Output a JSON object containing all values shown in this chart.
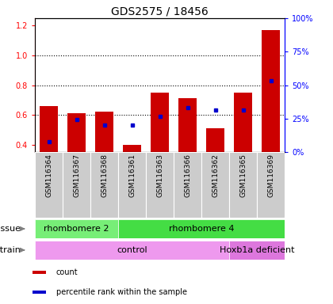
{
  "title": "GDS2575 / 18456",
  "samples": [
    "GSM116364",
    "GSM116367",
    "GSM116368",
    "GSM116361",
    "GSM116363",
    "GSM116366",
    "GSM116362",
    "GSM116365",
    "GSM116369"
  ],
  "count_values": [
    0.66,
    0.61,
    0.62,
    0.4,
    0.75,
    0.71,
    0.51,
    0.75,
    1.17
  ],
  "percentile_values": [
    0.42,
    0.57,
    0.53,
    0.53,
    0.59,
    0.65,
    0.63,
    0.63,
    0.83
  ],
  "ylim_left": [
    0.35,
    1.25
  ],
  "ylim_right": [
    0,
    100
  ],
  "yticks_left": [
    0.4,
    0.6,
    0.8,
    1.0,
    1.2
  ],
  "yticks_right": [
    0,
    25,
    50,
    75,
    100
  ],
  "ytick_labels_right": [
    "0%",
    "25%",
    "50%",
    "75%",
    "100%"
  ],
  "dotted_lines": [
    0.6,
    0.8,
    1.0
  ],
  "bar_color": "#cc0000",
  "dot_color": "#0000cc",
  "bar_width": 0.65,
  "tissue_groups": [
    {
      "label": "rhombomere 2",
      "start": 0,
      "end": 3,
      "color": "#77ee77"
    },
    {
      "label": "rhombomere 4",
      "start": 3,
      "end": 9,
      "color": "#44dd44"
    }
  ],
  "strain_groups": [
    {
      "label": "control",
      "start": 0,
      "end": 7,
      "color": "#ee99ee"
    },
    {
      "label": "Hoxb1a deficient",
      "start": 7,
      "end": 9,
      "color": "#dd77dd"
    }
  ],
  "legend_items": [
    {
      "label": "count",
      "color": "#cc0000"
    },
    {
      "label": "percentile rank within the sample",
      "color": "#0000cc"
    }
  ],
  "bg_color": "#cccccc",
  "title_fontsize": 10,
  "tick_fontsize": 7,
  "label_fontsize": 8,
  "sample_fontsize": 6.5
}
